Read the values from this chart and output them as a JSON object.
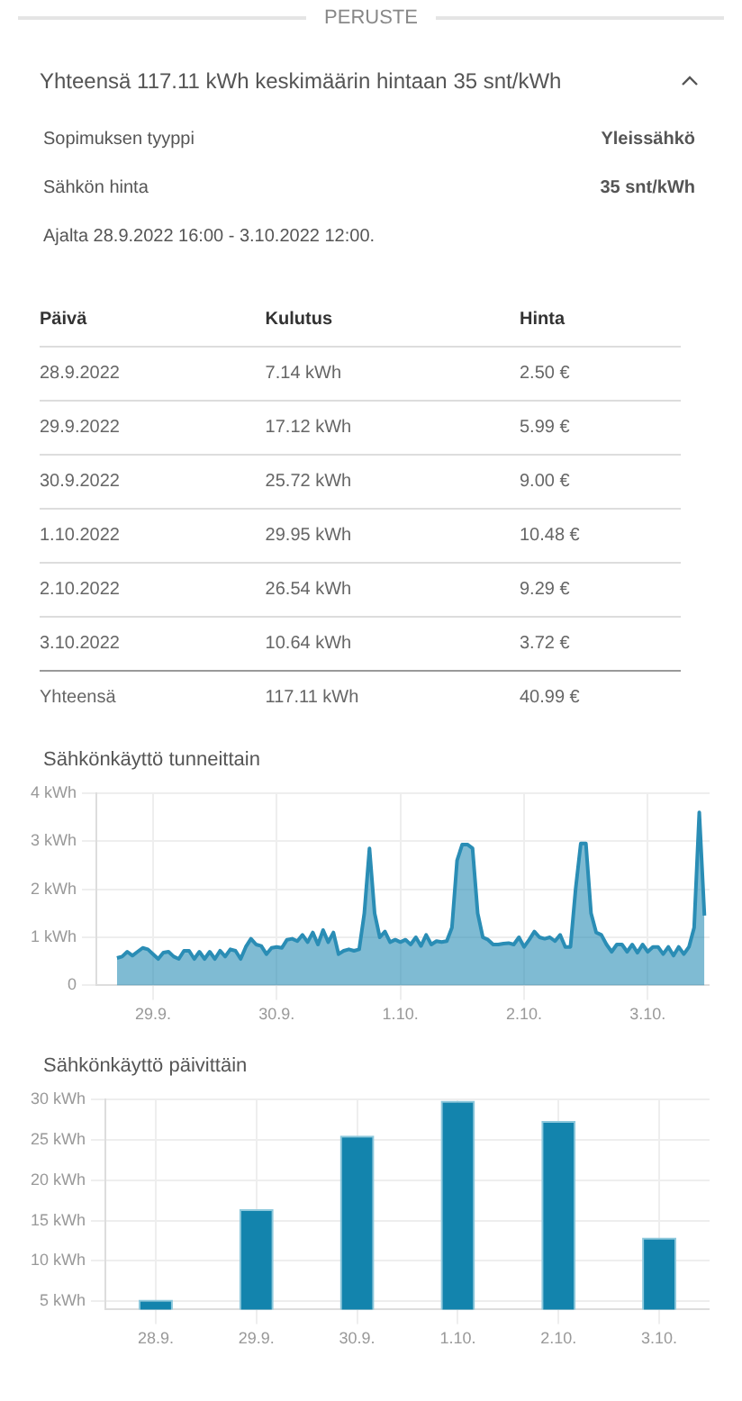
{
  "chart_data": [
    {
      "type": "other",
      "title": "PERUSTE",
      "annotations": [
        "Yhteensä 117.11 kWh keskimäärin hintaan 35 snt/kWh",
        "Sopimuksen tyyppi",
        "Yleissähkö",
        "Sähkön hinta",
        "35 snt/kWh",
        "Ajalta 28.9.2022 16:00 - 3.10.2022 12:00.",
        "Kulutus",
        "Hinta",
        "7.14 kWh",
        "2.50 €",
        "17.12 kWh",
        "5.99 €",
        "25.72 kWh",
        "9.00 €",
        "29.95 kWh",
        "10.48 €",
        "26.54 kWh",
        "9.29 €",
        "10.64 kWh",
        "3.72 €",
        "117.11 kWh",
        "40.99 €"
      ],
      "xlabel": "Päivä",
      "categories": [
        "28.9.2022",
        "29.9.2022",
        "30.9.2022",
        "1.10.2022",
        "2.10.2022",
        "3.10.2022",
        "Yhteensä"
      ]
    },
    {
      "type": "area",
      "title": "Sähkönkäyttö tunneittain",
      "color": "#2a8db5",
      "marker": "none",
      "grid": true,
      "x": [
        "2022-09-28T17:00",
        "2022-09-28T18:00",
        "2022-09-28T19:00",
        "2022-09-28T20:00",
        "2022-09-28T21:00",
        "2022-09-28T22:00",
        "2022-09-28T23:00",
        "2022-09-29T00:00",
        "2022-09-29T01:00",
        "2022-09-29T02:00",
        "2022-09-29T03:00",
        "2022-09-29T04:00",
        "2022-09-29T05:00",
        "2022-09-29T06:00",
        "2022-09-29T07:00",
        "2022-09-29T08:00",
        "2022-09-29T09:00",
        "2022-09-29T10:00",
        "2022-09-29T11:00",
        "2022-09-29T12:00",
        "2022-09-29T13:00",
        "2022-09-29T14:00",
        "2022-09-29T15:00",
        "2022-09-29T16:00",
        "2022-09-29T17:00",
        "2022-09-29T18:00",
        "2022-09-29T19:00",
        "2022-09-29T20:00",
        "2022-09-29T21:00",
        "2022-09-29T22:00",
        "2022-09-29T23:00",
        "2022-09-30T00:00",
        "2022-09-30T01:00",
        "2022-09-30T02:00",
        "2022-09-30T03:00",
        "2022-09-30T04:00",
        "2022-09-30T05:00",
        "2022-09-30T06:00",
        "2022-09-30T07:00",
        "2022-09-30T08:00",
        "2022-09-30T09:00",
        "2022-09-30T10:00",
        "2022-09-30T11:00",
        "2022-09-30T12:00",
        "2022-09-30T13:00",
        "2022-09-30T14:00",
        "2022-09-30T15:00",
        "2022-09-30T16:00",
        "2022-09-30T17:00",
        "2022-09-30T18:00",
        "2022-09-30T19:00",
        "2022-09-30T20:00",
        "2022-09-30T21:00",
        "2022-09-30T22:00",
        "2022-09-30T23:00",
        "2022-10-01T00:00",
        "2022-10-01T01:00",
        "2022-10-01T02:00",
        "2022-10-01T03:00",
        "2022-10-01T04:00",
        "2022-10-01T05:00",
        "2022-10-01T06:00",
        "2022-10-01T07:00",
        "2022-10-01T08:00",
        "2022-10-01T09:00",
        "2022-10-01T10:00",
        "2022-10-01T11:00",
        "2022-10-01T12:00",
        "2022-10-01T13:00",
        "2022-10-01T14:00",
        "2022-10-01T15:00",
        "2022-10-01T16:00",
        "2022-10-01T17:00",
        "2022-10-01T18:00",
        "2022-10-01T19:00",
        "2022-10-01T20:00",
        "2022-10-01T21:00",
        "2022-10-01T22:00",
        "2022-10-01T23:00",
        "2022-10-02T00:00",
        "2022-10-02T01:00",
        "2022-10-02T02:00",
        "2022-10-02T03:00",
        "2022-10-02T04:00",
        "2022-10-02T05:00",
        "2022-10-02T06:00",
        "2022-10-02T07:00",
        "2022-10-02T08:00",
        "2022-10-02T09:00",
        "2022-10-02T10:00",
        "2022-10-02T11:00",
        "2022-10-02T12:00",
        "2022-10-02T13:00",
        "2022-10-02T14:00",
        "2022-10-02T15:00",
        "2022-10-02T16:00",
        "2022-10-02T17:00",
        "2022-10-02T18:00",
        "2022-10-02T19:00",
        "2022-10-02T20:00",
        "2022-10-02T21:00",
        "2022-10-02T22:00",
        "2022-10-02T23:00",
        "2022-10-03T00:00",
        "2022-10-03T01:00",
        "2022-10-03T02:00",
        "2022-10-03T03:00",
        "2022-10-03T04:00",
        "2022-10-03T05:00",
        "2022-10-03T06:00",
        "2022-10-03T07:00",
        "2022-10-03T08:00",
        "2022-10-03T09:00",
        "2022-10-03T10:00",
        "2022-10-03T11:00"
      ],
      "values": [
        0.57,
        0.6,
        0.7,
        0.62,
        0.7,
        0.78,
        0.75,
        0.65,
        0.55,
        0.68,
        0.7,
        0.6,
        0.55,
        0.72,
        0.72,
        0.55,
        0.7,
        0.55,
        0.7,
        0.55,
        0.72,
        0.6,
        0.75,
        0.72,
        0.55,
        0.8,
        0.97,
        0.85,
        0.82,
        0.65,
        0.78,
        0.8,
        0.78,
        0.95,
        0.97,
        0.92,
        1.05,
        0.9,
        1.1,
        0.85,
        1.15,
        0.9,
        1.1,
        0.65,
        0.72,
        0.75,
        0.72,
        0.75,
        1.5,
        2.85,
        1.5,
        1.0,
        1.12,
        0.9,
        0.95,
        0.9,
        0.95,
        0.85,
        1.0,
        0.82,
        1.05,
        0.85,
        0.92,
        0.9,
        0.92,
        1.2,
        2.6,
        2.93,
        2.93,
        2.85,
        1.5,
        1.0,
        0.95,
        0.85,
        0.85,
        0.87,
        0.88,
        0.85,
        1.0,
        0.8,
        0.95,
        1.12,
        1.0,
        0.97,
        1.0,
        0.92,
        1.05,
        0.8,
        0.8,
        2.0,
        2.95,
        2.95,
        1.5,
        1.1,
        1.05,
        0.85,
        0.7,
        0.85,
        0.85,
        0.7,
        0.85,
        0.68,
        0.85,
        0.7,
        0.8,
        0.8,
        0.65,
        0.8,
        0.62,
        0.8,
        0.65,
        0.8,
        1.2,
        3.6,
        1.45
      ],
      "xlim": [
        "2022-09-28T13:00",
        "2022-10-03T12:00"
      ],
      "xticks": [
        {
          "value": "2022-09-29T00:00",
          "label": "29.9."
        },
        {
          "value": "2022-09-30T00:00",
          "label": "30.9."
        },
        {
          "value": "2022-10-01T00:00",
          "label": "1.10."
        },
        {
          "value": "2022-10-02T00:00",
          "label": "2.10."
        },
        {
          "value": "2022-10-03T00:00",
          "label": "3.10."
        }
      ],
      "ylim": [
        0,
        4
      ],
      "yticks": [
        0,
        {
          "value": 1,
          "label": "1 kWh"
        },
        {
          "value": 2,
          "label": "2 kWh"
        },
        {
          "value": 3,
          "label": "3 kWh"
        },
        {
          "value": 4,
          "label": "4 kWh"
        }
      ]
    },
    {
      "type": "bar",
      "title": "Sähkönkäyttö päivittäin",
      "color": "#1384ad",
      "grid": true,
      "categories": [
        "28.9.",
        "29.9.",
        "30.9.",
        "1.10.",
        "2.10.",
        "3.10."
      ],
      "values": [
        5.2,
        16.4,
        25.5,
        29.8,
        27.3,
        12.9
      ],
      "ylim": [
        4,
        30
      ],
      "yticks": [
        {
          "value": 5,
          "label": "5 kWh"
        },
        {
          "value": 10,
          "label": "10 kWh"
        },
        {
          "value": 15,
          "label": "15 kWh"
        },
        {
          "value": 20,
          "label": "20 kWh"
        },
        {
          "value": 25,
          "label": "25 kWh"
        },
        {
          "value": 30,
          "label": "30 kWh"
        }
      ]
    }
  ]
}
